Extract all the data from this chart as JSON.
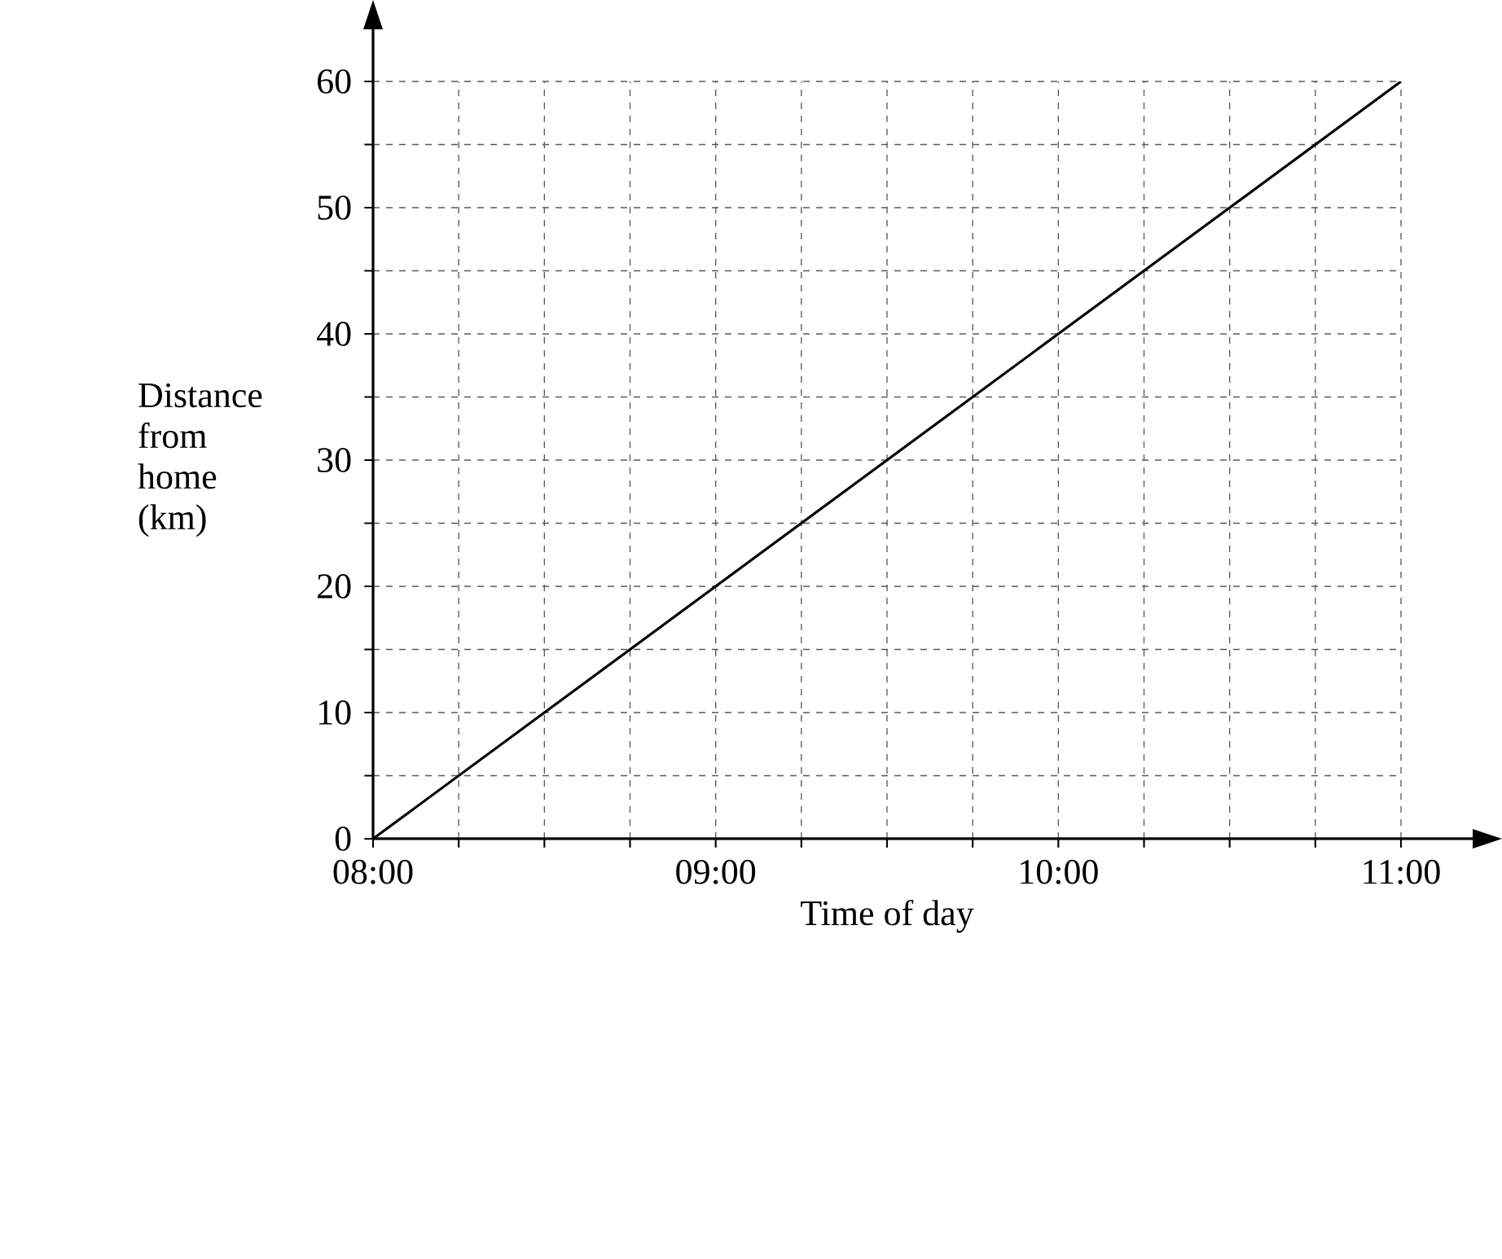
{
  "chart_data": {
    "type": "line",
    "xlabel": "Time of day",
    "ylabel": "Distance from home (km)",
    "x": [
      8,
      11
    ],
    "series": [
      {
        "color": "#000000",
        "values": [
          0,
          60
        ]
      }
    ],
    "xlim": [
      8,
      11
    ],
    "ylim": [
      0,
      60
    ],
    "xticks": [
      {
        "value": 8,
        "label": "08:00"
      },
      {
        "value": 8.25,
        "label": null
      },
      {
        "value": 8.5,
        "label": null
      },
      {
        "value": 8.75,
        "label": null
      },
      {
        "value": 9,
        "label": "09:00"
      },
      {
        "value": 9.25,
        "label": null
      },
      {
        "value": 9.5,
        "label": null
      },
      {
        "value": 9.75,
        "label": null
      },
      {
        "value": 10,
        "label": "10:00"
      },
      {
        "value": 10.25,
        "label": null
      },
      {
        "value": 10.5,
        "label": null
      },
      {
        "value": 10.75,
        "label": null
      },
      {
        "value": 11,
        "label": "11:00"
      }
    ],
    "yticks": [
      0,
      {
        "value": 5,
        "label": null
      },
      10,
      {
        "value": 15,
        "label": null
      },
      20,
      {
        "value": 25,
        "label": null
      },
      30,
      {
        "value": 35,
        "label": null
      },
      40,
      {
        "value": 45,
        "label": null
      },
      50,
      {
        "value": 55,
        "label": null
      },
      60
    ],
    "grid": true
  }
}
